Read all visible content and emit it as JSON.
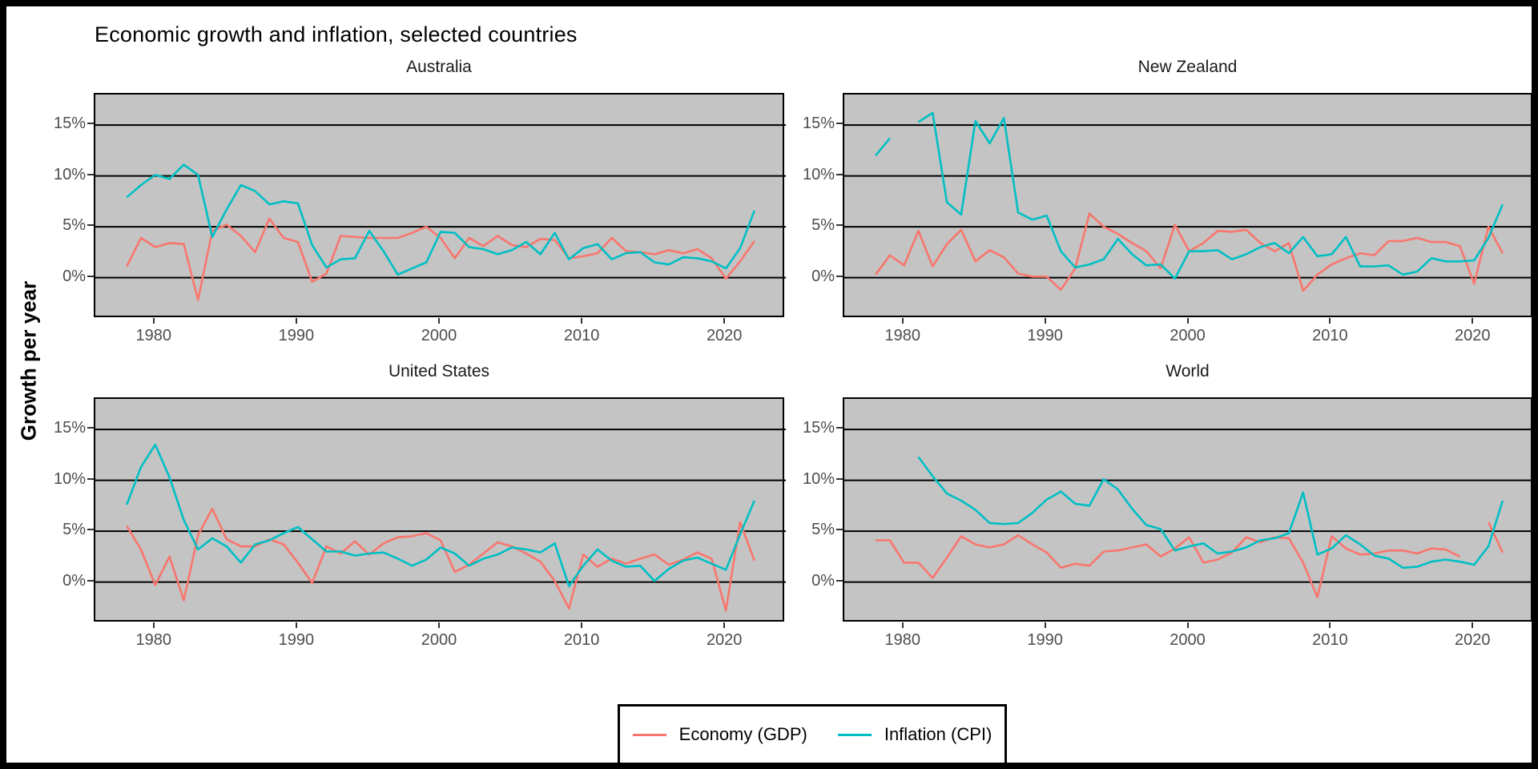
{
  "title": "Economic growth and inflation, selected countries",
  "y_axis_title": "Growth per year",
  "colors": {
    "gdp_line": "#F8766D",
    "cpi_line": "#00BFC4",
    "panel_background": "#C4C4C4",
    "gridline": "#000000",
    "axis_text": "#4D4D4D",
    "strip_text": "#1a1a1a",
    "outer_frame": "#000000"
  },
  "legend": {
    "items": [
      {
        "label": "Economy (GDP)",
        "color": "#F8766D"
      },
      {
        "label": "Inflation (CPI)",
        "color": "#00BFC4"
      }
    ]
  },
  "chart_data": {
    "type": "line",
    "title": "Economic growth and inflation, selected countries",
    "ylabel": "Growth per year",
    "grid": "horizontal-only",
    "legend_position": "bottom",
    "facets": [
      "Australia",
      "New Zealand",
      "United States",
      "World"
    ],
    "xlim": [
      1975.8,
      2024.2
    ],
    "ylim": [
      -4.05,
      18.0
    ],
    "x_ticks": [
      1980,
      1990,
      2000,
      2010,
      2020
    ],
    "y_ticks": [
      {
        "value": 0,
        "label": "0%"
      },
      {
        "value": 5,
        "label": "5%"
      },
      {
        "value": 10,
        "label": "10%"
      },
      {
        "value": 15,
        "label": "15%"
      }
    ],
    "years": [
      1978,
      1979,
      1980,
      1981,
      1982,
      1983,
      1984,
      1985,
      1986,
      1987,
      1988,
      1989,
      1990,
      1991,
      1992,
      1993,
      1994,
      1995,
      1996,
      1997,
      1998,
      1999,
      2000,
      2001,
      2002,
      2003,
      2004,
      2005,
      2006,
      2007,
      2008,
      2009,
      2010,
      2011,
      2012,
      2013,
      2014,
      2015,
      2016,
      2017,
      2018,
      2019,
      2020,
      2021,
      2022
    ],
    "panels": [
      {
        "title": "Australia",
        "series": [
          {
            "name": "Economy (GDP)",
            "color": "#F8766D",
            "values": [
              1.1,
              3.9,
              3.0,
              3.4,
              3.3,
              -2.2,
              4.6,
              5.2,
              4.1,
              2.5,
              5.8,
              3.9,
              3.5,
              -0.4,
              0.4,
              4.1,
              4.0,
              3.9,
              3.9,
              3.9,
              4.4,
              5.0,
              3.9,
              1.9,
              3.9,
              3.1,
              4.1,
              3.2,
              3.0,
              3.8,
              3.7,
              1.9,
              2.1,
              2.4,
              3.9,
              2.6,
              2.5,
              2.3,
              2.7,
              2.4,
              2.8,
              1.9,
              -0.1,
              1.6,
              3.6
            ]
          },
          {
            "name": "Inflation (CPI)",
            "color": "#00BFC4",
            "values": [
              7.9,
              9.1,
              10.1,
              9.7,
              11.1,
              10.1,
              4.0,
              6.7,
              9.1,
              8.5,
              7.2,
              7.5,
              7.3,
              3.2,
              1.0,
              1.8,
              1.9,
              4.6,
              2.6,
              0.3,
              0.9,
              1.5,
              4.5,
              4.4,
              3.0,
              2.8,
              2.3,
              2.7,
              3.5,
              2.3,
              4.4,
              1.8,
              2.9,
              3.3,
              1.8,
              2.4,
              2.5,
              1.5,
              1.3,
              2.0,
              1.9,
              1.6,
              0.9,
              2.9,
              6.6
            ]
          }
        ]
      },
      {
        "title": "New Zealand",
        "series": [
          {
            "name": "Economy (GDP)",
            "color": "#F8766D",
            "values": [
              0.3,
              2.2,
              1.2,
              4.6,
              1.1,
              3.3,
              4.7,
              1.6,
              2.7,
              2.0,
              0.4,
              0.1,
              0.1,
              -1.2,
              0.9,
              6.3,
              5.0,
              4.3,
              3.4,
              2.6,
              0.9,
              5.2,
              2.6,
              3.4,
              4.6,
              4.5,
              4.7,
              3.4,
              2.6,
              3.4,
              -1.3,
              0.3,
              1.3,
              1.9,
              2.4,
              2.2,
              3.6,
              3.6,
              3.9,
              3.5,
              3.5,
              3.1,
              -0.6,
              5.0,
              2.4
            ]
          },
          {
            "name": "Inflation (CPI)",
            "color": "#00BFC4",
            "values": [
              12.0,
              13.7,
              null,
              15.3,
              16.2,
              7.4,
              6.2,
              15.4,
              13.2,
              15.7,
              6.4,
              5.7,
              6.1,
              2.6,
              1.0,
              1.3,
              1.8,
              3.8,
              2.3,
              1.2,
              1.3,
              -0.1,
              2.6,
              2.6,
              2.7,
              1.8,
              2.3,
              3.0,
              3.4,
              2.4,
              4.0,
              2.1,
              2.3,
              4.0,
              1.1,
              1.1,
              1.2,
              0.3,
              0.6,
              1.9,
              1.6,
              1.6,
              1.7,
              3.9,
              7.2
            ]
          }
        ]
      },
      {
        "title": "United States",
        "series": [
          {
            "name": "Economy (GDP)",
            "color": "#F8766D",
            "values": [
              5.5,
              3.2,
              -0.3,
              2.5,
              -1.8,
              4.6,
              7.2,
              4.2,
              3.5,
              3.5,
              4.2,
              3.7,
              1.9,
              -0.1,
              3.5,
              2.8,
              4.0,
              2.7,
              3.8,
              4.4,
              4.5,
              4.8,
              4.1,
              1.0,
              1.7,
              2.8,
              3.9,
              3.5,
              2.8,
              2.0,
              0.1,
              -2.6,
              2.7,
              1.5,
              2.3,
              1.8,
              2.3,
              2.7,
              1.7,
              2.2,
              2.9,
              2.3,
              -2.8,
              5.9,
              2.1
            ]
          },
          {
            "name": "Inflation (CPI)",
            "color": "#00BFC4",
            "values": [
              7.6,
              11.3,
              13.5,
              10.3,
              6.1,
              3.2,
              4.3,
              3.5,
              1.9,
              3.7,
              4.1,
              4.8,
              5.4,
              4.2,
              3.0,
              3.0,
              2.6,
              2.8,
              2.9,
              2.3,
              1.6,
              2.2,
              3.4,
              2.8,
              1.6,
              2.3,
              2.7,
              3.4,
              3.2,
              2.9,
              3.8,
              -0.4,
              1.6,
              3.2,
              2.1,
              1.5,
              1.6,
              0.1,
              1.3,
              2.1,
              2.4,
              1.8,
              1.2,
              4.7,
              8.0
            ]
          }
        ]
      },
      {
        "title": "World",
        "series": [
          {
            "name": "Economy (GDP)",
            "color": "#F8766D",
            "values": [
              4.1,
              4.1,
              1.9,
              1.9,
              0.4,
              2.4,
              4.5,
              3.7,
              3.4,
              3.7,
              4.6,
              3.7,
              2.9,
              1.4,
              1.8,
              1.6,
              3.0,
              3.1,
              3.4,
              3.7,
              2.5,
              3.3,
              4.4,
              1.9,
              2.2,
              2.9,
              4.4,
              3.9,
              4.4,
              4.3,
              1.9,
              -1.5,
              4.5,
              3.3,
              2.7,
              2.8,
              3.1,
              3.1,
              2.8,
              3.3,
              3.2,
              2.5,
              null,
              5.9,
              2.9
            ]
          },
          {
            "name": "Inflation (CPI)",
            "color": "#00BFC4",
            "values": [
              null,
              null,
              null,
              12.3,
              10.4,
              8.7,
              8.0,
              7.1,
              5.8,
              5.7,
              5.8,
              6.8,
              8.1,
              8.9,
              7.7,
              7.5,
              10.1,
              9.1,
              7.2,
              5.6,
              5.2,
              3.1,
              3.5,
              3.8,
              2.8,
              3.0,
              3.4,
              4.1,
              4.3,
              4.8,
              8.8,
              2.7,
              3.3,
              4.6,
              3.7,
              2.6,
              2.3,
              1.4,
              1.5,
              2.0,
              2.2,
              2.0,
              1.7,
              3.5,
              8.0
            ]
          }
        ]
      }
    ]
  }
}
